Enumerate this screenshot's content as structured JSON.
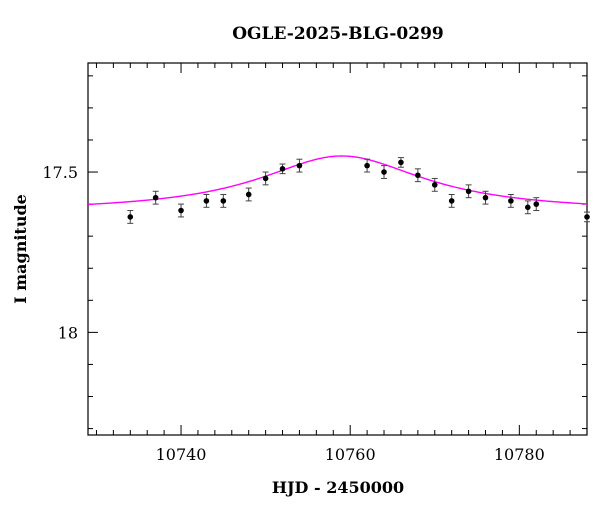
{
  "chart_data": {
    "type": "scatter",
    "title": "OGLE-2025-BLG-0299",
    "xlabel": "HJD - 2450000",
    "ylabel": "I magnitude",
    "xlim": [
      10729,
      10788
    ],
    "ylim": [
      18.32,
      17.16
    ],
    "y_inverted": true,
    "grid": false,
    "x_ticks": [
      10740,
      10760,
      10780
    ],
    "x_tick_labels": [
      "10740",
      "10760",
      "10780"
    ],
    "y_ticks": [
      17.5,
      18
    ],
    "y_tick_labels": [
      "17.5",
      "18"
    ],
    "x_minor_step": 2,
    "y_minor_step": 0.1,
    "series": [
      {
        "kind": "points",
        "color": "#000000",
        "x": [
          10734,
          10737,
          10740,
          10743,
          10745,
          10748,
          10750,
          10752,
          10754,
          10762,
          10764,
          10766,
          10768,
          10770,
          10772,
          10774,
          10776,
          10779,
          10781,
          10782,
          10788
        ],
        "y": [
          17.64,
          17.58,
          17.62,
          17.59,
          17.59,
          17.57,
          17.52,
          17.49,
          17.48,
          17.48,
          17.5,
          17.47,
          17.51,
          17.54,
          17.59,
          17.56,
          17.58,
          17.59,
          17.61,
          17.6,
          17.64
        ],
        "yerr": [
          0.02,
          0.02,
          0.02,
          0.02,
          0.02,
          0.02,
          0.02,
          0.015,
          0.02,
          0.02,
          0.02,
          0.015,
          0.02,
          0.02,
          0.02,
          0.02,
          0.02,
          0.02,
          0.02,
          0.02,
          0.015
        ]
      },
      {
        "kind": "model",
        "color": "#ff00ff",
        "model": {
          "t0": 10759,
          "tE": 12,
          "base": 17.625,
          "amp": 0.175
        }
      }
    ]
  }
}
